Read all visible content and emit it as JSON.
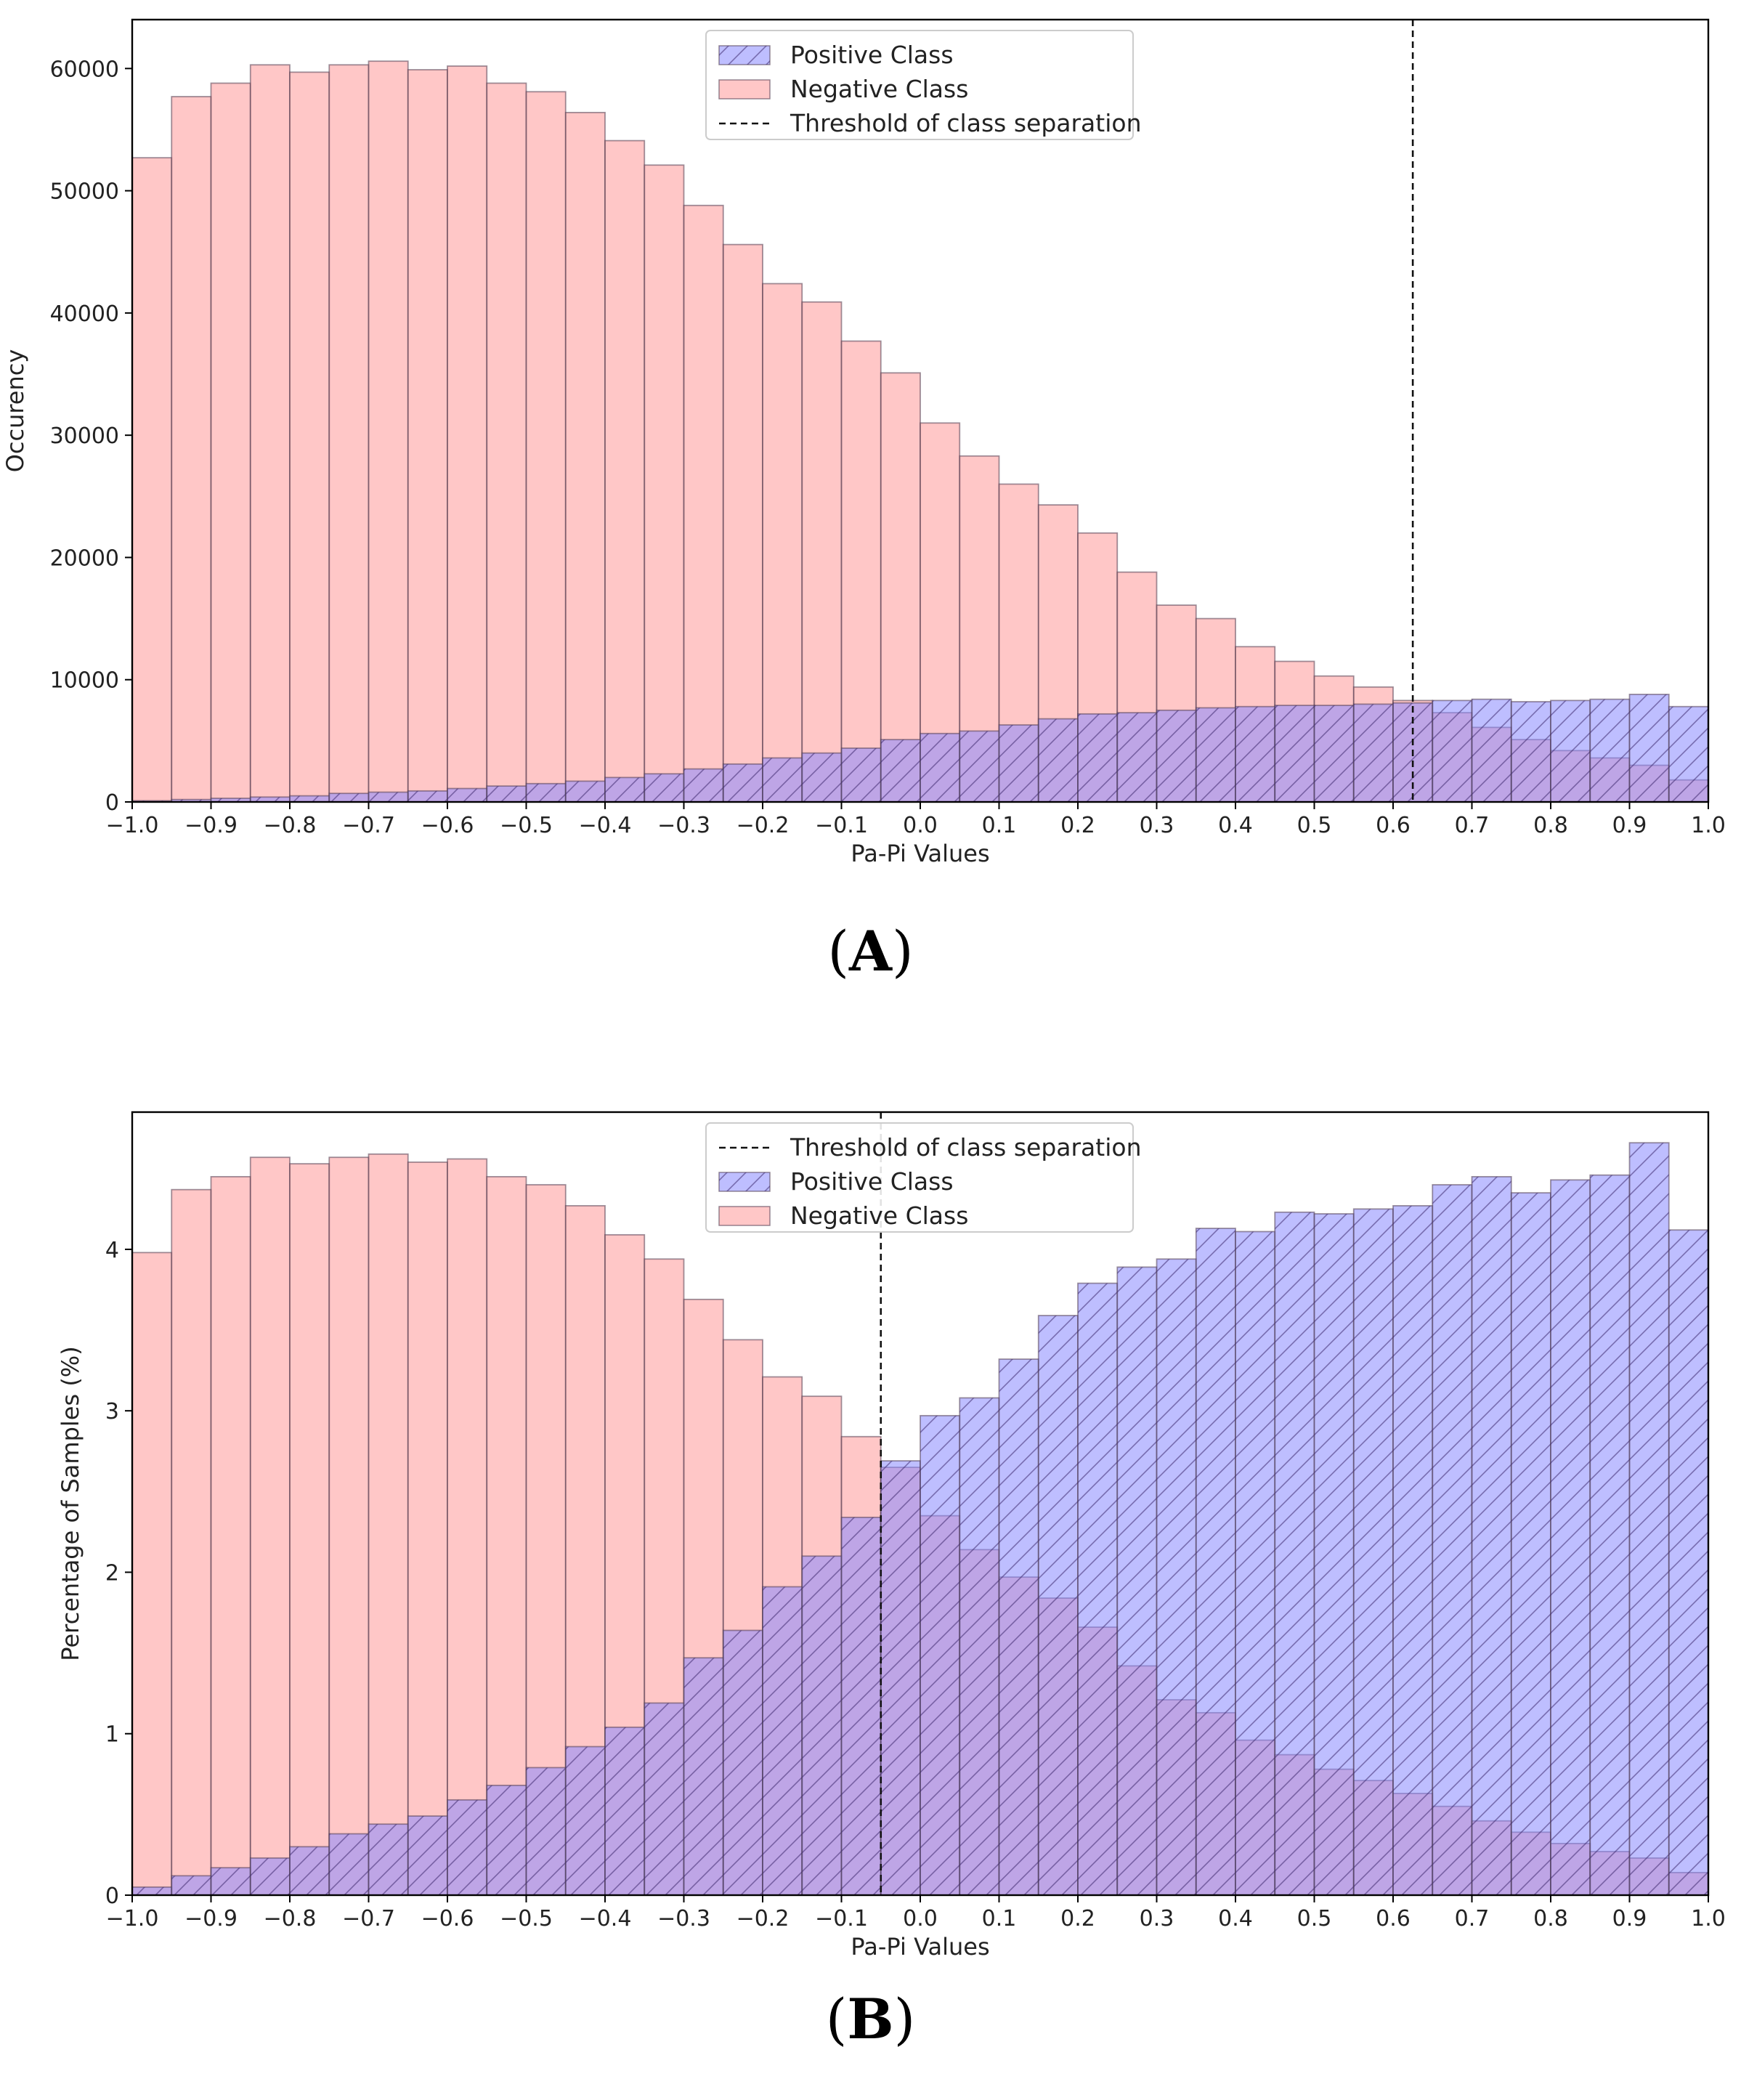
{
  "chart_data": [
    {
      "panel_label": "A",
      "type": "histogram",
      "xlabel": "Pa-Pi Values",
      "ylabel": "Occurency",
      "xlim": [
        -1.0,
        1.0
      ],
      "ylim": [
        0,
        64000
      ],
      "xticks": [
        -1.0,
        -0.9,
        -0.8,
        -0.7,
        -0.6,
        -0.5,
        -0.4,
        -0.3,
        -0.2,
        -0.1,
        0.0,
        0.1,
        0.2,
        0.3,
        0.4,
        0.5,
        0.6,
        0.7,
        0.8,
        0.9,
        1.0
      ],
      "xtick_labels": [
        "−1.0",
        "−0.9",
        "−0.8",
        "−0.7",
        "−0.6",
        "−0.5",
        "−0.4",
        "−0.3",
        "−0.2",
        "−0.1",
        "0.0",
        "0.1",
        "0.2",
        "0.3",
        "0.4",
        "0.5",
        "0.6",
        "0.7",
        "0.8",
        "0.9",
        "1.0"
      ],
      "yticks": [
        0,
        10000,
        20000,
        30000,
        40000,
        50000,
        60000
      ],
      "ytick_labels": [
        "0",
        "10000",
        "20000",
        "30000",
        "40000",
        "50000",
        "60000"
      ],
      "bin_start": -1.0,
      "bin_width": 0.05,
      "series": [
        {
          "name": "Negative Class",
          "color": "#ff9999",
          "values": [
            52700,
            57700,
            58800,
            60300,
            59700,
            60300,
            60600,
            59900,
            60200,
            58800,
            58100,
            56400,
            54100,
            52100,
            48800,
            45600,
            42400,
            40900,
            37700,
            35100,
            31000,
            28300,
            26000,
            24300,
            22000,
            18800,
            16100,
            15000,
            12700,
            11500,
            10300,
            9400,
            8300,
            7300,
            6100,
            5100,
            4200,
            3600,
            3000,
            1800
          ]
        },
        {
          "name": "Positive Class",
          "color": "#8888ff",
          "hatch": "//",
          "values": [
            100,
            200,
            300,
            400,
            500,
            700,
            800,
            900,
            1100,
            1300,
            1500,
            1700,
            2000,
            2300,
            2700,
            3100,
            3600,
            4000,
            4400,
            5100,
            5600,
            5800,
            6300,
            6800,
            7200,
            7300,
            7500,
            7700,
            7800,
            7900,
            7900,
            8000,
            8100,
            8300,
            8400,
            8200,
            8300,
            8400,
            8800,
            7800
          ]
        }
      ],
      "threshold": {
        "name": "Threshold of class separation",
        "x": 0.625
      },
      "legend_order": [
        "Positive Class",
        "Negative Class",
        "Threshold of class separation"
      ],
      "legend_position": "top-center"
    },
    {
      "panel_label": "B",
      "type": "histogram",
      "xlabel": "Pa-Pi Values",
      "ylabel": "Percentage of Samples (%)",
      "xlim": [
        -1.0,
        1.0
      ],
      "ylim": [
        0,
        4.85
      ],
      "xticks": [
        -1.0,
        -0.9,
        -0.8,
        -0.7,
        -0.6,
        -0.5,
        -0.4,
        -0.3,
        -0.2,
        -0.1,
        0.0,
        0.1,
        0.2,
        0.3,
        0.4,
        0.5,
        0.6,
        0.7,
        0.8,
        0.9,
        1.0
      ],
      "xtick_labels": [
        "−1.0",
        "−0.9",
        "−0.8",
        "−0.7",
        "−0.6",
        "−0.5",
        "−0.4",
        "−0.3",
        "−0.2",
        "−0.1",
        "0.0",
        "0.1",
        "0.2",
        "0.3",
        "0.4",
        "0.5",
        "0.6",
        "0.7",
        "0.8",
        "0.9",
        "1.0"
      ],
      "yticks": [
        0,
        1,
        2,
        3,
        4
      ],
      "ytick_labels": [
        "0",
        "1",
        "2",
        "3",
        "4"
      ],
      "bin_start": -1.0,
      "bin_width": 0.05,
      "series": [
        {
          "name": "Negative Class",
          "color": "#ff9999",
          "values": [
            3.98,
            4.37,
            4.45,
            4.57,
            4.53,
            4.57,
            4.59,
            4.54,
            4.56,
            4.45,
            4.4,
            4.27,
            4.09,
            3.94,
            3.69,
            3.44,
            3.21,
            3.09,
            2.84,
            2.65,
            2.35,
            2.14,
            1.97,
            1.84,
            1.66,
            1.42,
            1.21,
            1.13,
            0.96,
            0.87,
            0.78,
            0.71,
            0.63,
            0.55,
            0.46,
            0.39,
            0.32,
            0.27,
            0.23,
            0.14
          ]
        },
        {
          "name": "Positive Class",
          "color": "#8888ff",
          "hatch": "//",
          "values": [
            0.05,
            0.12,
            0.17,
            0.23,
            0.3,
            0.38,
            0.44,
            0.49,
            0.59,
            0.68,
            0.79,
            0.92,
            1.04,
            1.19,
            1.47,
            1.64,
            1.91,
            2.1,
            2.34,
            2.69,
            2.97,
            3.08,
            3.32,
            3.59,
            3.79,
            3.89,
            3.94,
            4.13,
            4.11,
            4.23,
            4.22,
            4.25,
            4.27,
            4.4,
            4.45,
            4.35,
            4.43,
            4.46,
            4.66,
            4.12
          ]
        }
      ],
      "threshold": {
        "name": "Threshold of class separation",
        "x": -0.05
      },
      "legend_order": [
        "Threshold of class separation",
        "Positive Class",
        "Negative Class"
      ],
      "legend_position": "top-center"
    }
  ]
}
